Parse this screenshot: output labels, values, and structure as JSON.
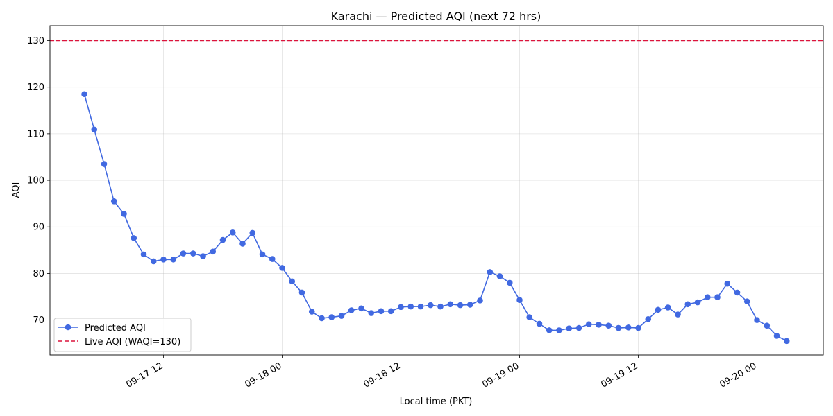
{
  "chart_data": {
    "type": "line",
    "title": "Karachi — Predicted AQI (next 72 hrs)",
    "xlabel": "Local time (PKT)",
    "ylabel": "AQI",
    "x_start": "2025-09-17 04:00",
    "x_step_hours": 1,
    "xticks": [
      "09-17 12",
      "09-18 00",
      "09-18 12",
      "09-19 00",
      "09-19 12",
      "09-20 00"
    ],
    "yticks": [
      70,
      80,
      90,
      100,
      110,
      120,
      130
    ],
    "ylim": [
      62.5,
      133.2
    ],
    "grid": true,
    "legend_position": "lower-left",
    "series": [
      {
        "name": "Predicted AQI",
        "color": "#4169E1",
        "values": [
          118.5,
          110.9,
          103.5,
          95.5,
          92.8,
          87.6,
          84.1,
          82.6,
          83.0,
          83.0,
          84.3,
          84.3,
          83.7,
          84.7,
          87.2,
          88.8,
          86.4,
          88.7,
          84.1,
          83.1,
          81.2,
          78.3,
          75.9,
          71.8,
          70.4,
          70.6,
          70.9,
          72.1,
          72.5,
          71.5,
          71.9,
          71.9,
          72.8,
          72.9,
          72.9,
          73.2,
          72.9,
          73.4,
          73.2,
          73.3,
          74.2,
          80.3,
          79.4,
          78.0,
          74.3,
          70.6,
          69.2,
          67.8,
          67.8,
          68.2,
          68.3,
          69.1,
          69.0,
          68.8,
          68.3,
          68.4,
          68.3,
          70.2,
          72.2,
          72.7,
          71.2,
          73.4,
          73.8,
          74.9,
          74.9,
          77.8,
          75.9,
          74.0,
          70.0,
          68.8,
          66.6,
          65.5
        ]
      },
      {
        "name": "Live AQI (WAQI=130)",
        "color": "#DC143C",
        "style": "dashed",
        "value": 130
      }
    ]
  }
}
